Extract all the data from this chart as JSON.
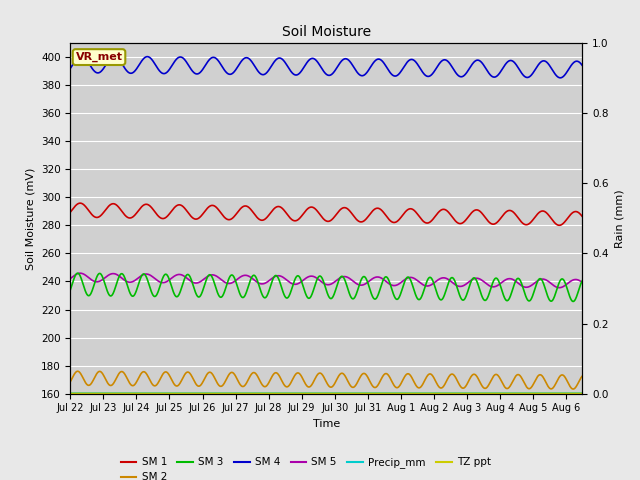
{
  "title": "Soil Moisture",
  "xlabel": "Time",
  "ylabel_left": "Soil Moisture (mV)",
  "ylabel_right": "Rain (mm)",
  "fig_facecolor": "#e8e8e8",
  "plot_bg_color": "#d0d0d0",
  "ylim_left": [
    160,
    410
  ],
  "ylim_right": [
    0.0,
    1.0
  ],
  "yticks_left": [
    160,
    180,
    200,
    220,
    240,
    260,
    280,
    300,
    320,
    340,
    360,
    380,
    400
  ],
  "yticks_right": [
    0.0,
    0.2,
    0.4,
    0.6,
    0.8,
    1.0
  ],
  "day_labels": [
    "Jul 22",
    "Jul 23",
    "Jul 24",
    "Jul 25",
    "Jul 26",
    "Jul 27",
    "Jul 28",
    "Jul 29",
    "Jul 30",
    "Jul 31",
    "Aug 1",
    "Aug 2",
    "Aug 3",
    "Aug 4",
    "Aug 5",
    "Aug 6"
  ],
  "n_days": 15.5,
  "points_per_day": 96,
  "annotation_text": "VR_met",
  "legend_row1": [
    "SM 1",
    "SM 2",
    "SM 3",
    "SM 4",
    "SM 5",
    "Precip_mm"
  ],
  "legend_row2": [
    "TZ ppt"
  ],
  "legend_colors": [
    "#cc0000",
    "#cc8800",
    "#00bb00",
    "#0000cc",
    "#aa00aa",
    "#00cccc",
    "#cccc00"
  ]
}
